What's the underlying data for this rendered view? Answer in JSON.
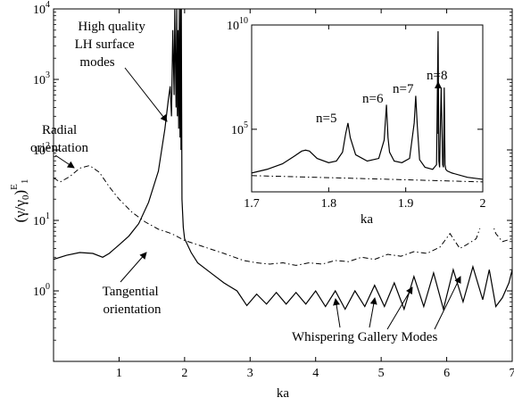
{
  "chart_data": [
    {
      "type": "line",
      "title": "",
      "xlabel": "ka",
      "ylabel": "(γ/γ0)E1",
      "ylabel_parts": {
        "main": "(γ/γ",
        "sub": "0",
        "close": ")",
        "sup": "E",
        "sub2": "1"
      },
      "xlim": [
        0,
        7
      ],
      "ylim": [
        0.1,
        10000
      ],
      "yscale": "log",
      "grid": false,
      "xticks": [
        1,
        2,
        3,
        4,
        5,
        6,
        7
      ],
      "xtick_labels": [
        "1",
        "2",
        "3",
        "4",
        "5",
        "6",
        "7"
      ],
      "yticks": [
        1,
        10,
        100,
        1000,
        10000
      ],
      "ytick_labels": [
        {
          "base": "10",
          "exp": "0"
        },
        {
          "base": "10",
          "exp": "1"
        },
        {
          "base": "10",
          "exp": "2"
        },
        {
          "base": "10",
          "exp": "3"
        },
        {
          "base": "10",
          "exp": "4"
        }
      ],
      "series": [
        {
          "key": "tangential",
          "style": "solid",
          "x": [
            0.0,
            0.2,
            0.4,
            0.6,
            0.75,
            0.85,
            1.0,
            1.15,
            1.3,
            1.45,
            1.6,
            1.7,
            1.75,
            1.78,
            1.8,
            1.82,
            1.84,
            1.85,
            1.87,
            1.88,
            1.89,
            1.9,
            1.91,
            1.92,
            1.93,
            1.94,
            1.945,
            1.95,
            1.96,
            1.98,
            2.0,
            2.1,
            2.2,
            2.4,
            2.6,
            2.8,
            2.95,
            3.1,
            3.25,
            3.4,
            3.55,
            3.7,
            3.85,
            4.0,
            4.15,
            4.3,
            4.45,
            4.6,
            4.75,
            4.9,
            5.05,
            5.2,
            5.35,
            5.5,
            5.65,
            5.8,
            5.95,
            6.1,
            6.25,
            6.4,
            6.55,
            6.65,
            6.75,
            6.85,
            6.95,
            7.0
          ],
          "y": [
            2.8,
            3.2,
            3.5,
            3.4,
            3.0,
            3.4,
            4.5,
            6.0,
            9.0,
            18.0,
            50.0,
            200.0,
            500.0,
            800.0,
            300.0,
            5000.0,
            600.0,
            10000.0,
            400.0,
            10000.0,
            300.0,
            5000.0,
            200.0,
            10000.0,
            150.0,
            10000.0,
            100.0,
            10000.0,
            20.0,
            8.0,
            5.5,
            3.5,
            2.5,
            1.8,
            1.3,
            1.0,
            0.62,
            0.9,
            0.65,
            0.95,
            0.65,
            0.95,
            0.65,
            1.0,
            0.6,
            1.0,
            0.55,
            1.0,
            0.6,
            1.2,
            0.6,
            1.3,
            0.55,
            1.6,
            0.6,
            1.8,
            0.55,
            2.0,
            0.7,
            2.2,
            0.75,
            2.0,
            0.6,
            0.8,
            1.3,
            2.0
          ]
        },
        {
          "key": "radial",
          "style": "dash-dot",
          "x": [
            0.0,
            0.1,
            0.25,
            0.4,
            0.55,
            0.7,
            0.85,
            1.0,
            1.2,
            1.4,
            1.6,
            1.8,
            2.0,
            2.3,
            2.6,
            2.9,
            3.1,
            3.3,
            3.5,
            3.7,
            3.9,
            4.1,
            4.3,
            4.5,
            4.7,
            4.9,
            5.1,
            5.3,
            5.5,
            5.7,
            5.9,
            6.05,
            6.2,
            6.3,
            6.45,
            6.55,
            6.65,
            6.75,
            6.85,
            7.0
          ],
          "y": [
            40.0,
            35.0,
            42.0,
            55.0,
            60.0,
            48.0,
            30.0,
            20.0,
            13.0,
            9.5,
            7.5,
            6.5,
            5.2,
            4.2,
            3.4,
            2.7,
            2.5,
            2.4,
            2.5,
            2.3,
            2.5,
            2.4,
            2.7,
            2.6,
            3.0,
            2.8,
            3.3,
            3.1,
            3.6,
            3.4,
            4.2,
            6.5,
            4.0,
            4.5,
            5.5,
            10.0,
            12.0,
            6.5,
            5.0,
            5.5
          ]
        }
      ],
      "annotations": [
        {
          "key": "hq",
          "lines": [
            "High quality",
            "LH surface",
            "modes"
          ]
        },
        {
          "key": "radial",
          "lines": [
            "Radial",
            "orientation"
          ]
        },
        {
          "key": "tangential",
          "lines": [
            "Tangential",
            "orientation"
          ]
        },
        {
          "key": "wgm",
          "lines": [
            "Whispering Gallery Modes"
          ]
        }
      ]
    },
    {
      "type": "line",
      "title": "",
      "xlabel": "ka",
      "ylabel": "",
      "xlim": [
        1.7,
        2.0
      ],
      "ylim": [
        100,
        10000000000
      ],
      "yscale": "log",
      "grid": false,
      "xticks": [
        1.7,
        1.8,
        1.9,
        2.0
      ],
      "xtick_labels": [
        "1.7",
        "1.8",
        "1.9",
        "2"
      ],
      "yticks": [
        100000,
        10000000000
      ],
      "ytick_labels": [
        {
          "base": "10",
          "exp": "5"
        },
        {
          "base": "10",
          "exp": "10"
        }
      ],
      "series": [
        {
          "key": "tangential",
          "style": "solid",
          "x": [
            1.7,
            1.72,
            1.74,
            1.755,
            1.765,
            1.77,
            1.775,
            1.785,
            1.8,
            1.81,
            1.818,
            1.822,
            1.825,
            1.828,
            1.835,
            1.85,
            1.865,
            1.872,
            1.875,
            1.877,
            1.879,
            1.885,
            1.895,
            1.905,
            1.911,
            1.913,
            1.915,
            1.918,
            1.925,
            1.935,
            1.94,
            1.942,
            1.943,
            1.944,
            1.946,
            1.948,
            1.949,
            1.95,
            1.951,
            1.952,
            1.954,
            1.96,
            1.98,
            2.0
          ],
          "y": [
            800,
            1200,
            2200,
            5000,
            9000,
            10000,
            9000,
            4000,
            2500,
            3000,
            8000,
            60000,
            200000,
            40000,
            6000,
            3000,
            4000,
            30000,
            1500000,
            40000,
            8000,
            3000,
            2500,
            4000,
            200000,
            4000000,
            150000,
            3500,
            1500,
            1200,
            2000,
            5000000000,
            3000,
            1500,
            10000000,
            2000,
            1500,
            10000000,
            2000,
            1200,
            1000,
            800,
            500,
            400
          ]
        },
        {
          "key": "radial",
          "style": "dash-dot",
          "x": [
            1.7,
            1.8,
            1.9,
            2.0
          ],
          "y": [
            600,
            480,
            380,
            300
          ]
        }
      ],
      "annotations": [
        {
          "key": "n5",
          "text": "n=5"
        },
        {
          "key": "n6",
          "text": "n=6"
        },
        {
          "key": "n7",
          "text": "n=7"
        },
        {
          "key": "n8",
          "text": "n=8"
        }
      ]
    }
  ]
}
